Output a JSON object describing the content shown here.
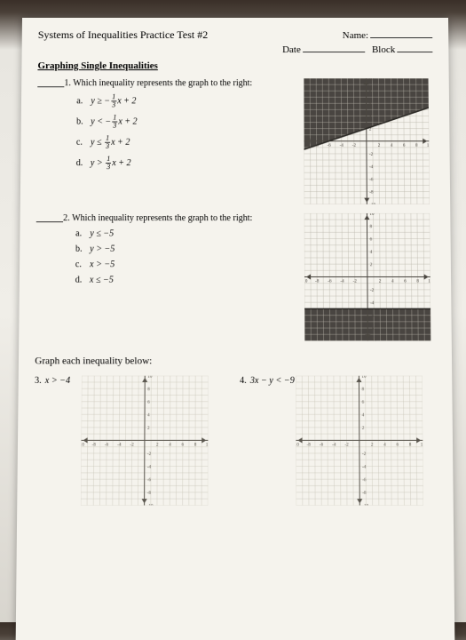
{
  "header": {
    "title": "Systems of Inequalities Practice Test #2",
    "name_label": "Name:",
    "date_label": "Date",
    "block_label": "Block"
  },
  "section1_title": "Graphing Single Inequalities",
  "q1": {
    "number": "1.",
    "prompt": "Which inequality represents the graph to the right:",
    "options": {
      "a": {
        "letter": "a.",
        "pre": "y ≥ −",
        "num": "1",
        "den": "3",
        "post": "x + 2"
      },
      "b": {
        "letter": "b.",
        "pre": "y < −",
        "num": "1",
        "den": "3",
        "post": "x + 2"
      },
      "c": {
        "letter": "c.",
        "pre": "y ≤ ",
        "num": "1",
        "den": "3",
        "post": "x + 2"
      },
      "d": {
        "letter": "d.",
        "pre": "y > ",
        "num": "1",
        "den": "3",
        "post": "x + 2"
      }
    },
    "graph": {
      "type": "inequality",
      "xlim": [
        -10,
        10
      ],
      "ylim": [
        -10,
        10
      ],
      "tick_step": 2,
      "grid_color": "#b8b4a8",
      "axis_color": "#4a4640",
      "shade_polygon": [
        [
          -10,
          10
        ],
        [
          10,
          10
        ],
        [
          10,
          5.33
        ],
        [
          -10,
          -1.33
        ]
      ],
      "line": {
        "points": [
          [
            -10,
            -1.33
          ],
          [
            10,
            5.33
          ]
        ],
        "dashed": false,
        "color": "#2a2824"
      },
      "axis_labels": [
        "2",
        "4",
        "6",
        "8",
        "10",
        "-2",
        "-4",
        "-6",
        "-8",
        "-10"
      ]
    }
  },
  "q2": {
    "number": "2.",
    "prompt": "Which inequality represents the graph to the right:",
    "options": {
      "a": {
        "letter": "a.",
        "text": "y ≤ −5"
      },
      "b": {
        "letter": "b.",
        "text": "y > −5"
      },
      "c": {
        "letter": "c.",
        "text": "x > −5"
      },
      "d": {
        "letter": "d.",
        "text": "x ≤ −5"
      }
    },
    "graph": {
      "type": "inequality",
      "xlim": [
        -10,
        10
      ],
      "ylim": [
        -10,
        10
      ],
      "tick_step": 2,
      "grid_color": "#b8b4a8",
      "axis_color": "#4a4640",
      "shade_polygon": [
        [
          -10,
          -5
        ],
        [
          10,
          -5
        ],
        [
          10,
          -10
        ],
        [
          -10,
          -10
        ]
      ],
      "line": {
        "points": [
          [
            -10,
            -5
          ],
          [
            10,
            -5
          ]
        ],
        "dashed": false,
        "color": "#2a2824"
      },
      "axis_labels": [
        "2",
        "4",
        "6",
        "8",
        "10",
        "-2",
        "-4",
        "-6",
        "-8",
        "-10"
      ]
    }
  },
  "instruction": "Graph each inequality below:",
  "q3": {
    "number": "3.",
    "text": "x > −4"
  },
  "q4": {
    "number": "4.",
    "text": "3x − y < −9"
  },
  "blank_graph": {
    "xlim": [
      -10,
      10
    ],
    "ylim": [
      -10,
      10
    ],
    "tick_step": 2,
    "grid_color": "#c8c4b8",
    "axis_color": "#5a564e",
    "axis_labels": [
      "2",
      "4",
      "6",
      "8",
      "10",
      "-2",
      "-4",
      "-6",
      "-8",
      "-10"
    ]
  },
  "colors": {
    "paper": "#f5f3ed",
    "ink": "#2a2824"
  }
}
